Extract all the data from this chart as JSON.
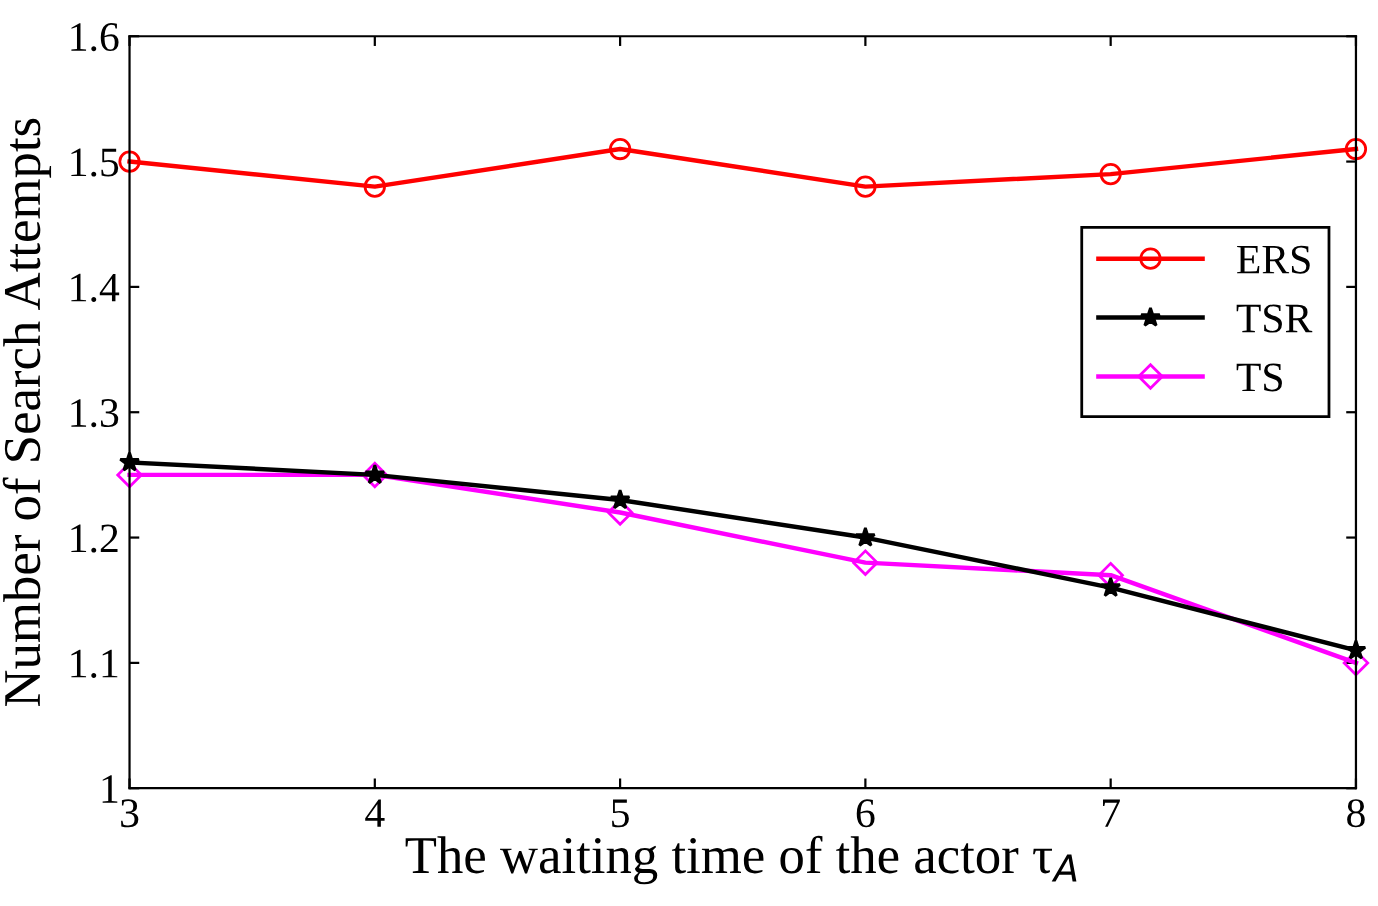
{
  "chart_data": {
    "type": "line",
    "xlabel": "The waiting time of the actor τ$_{A}$",
    "ylabel": "Number of Search Attempts",
    "x": [
      3,
      4,
      5,
      6,
      7,
      8
    ],
    "series": [
      {
        "name": "ERS",
        "color": "#ff0000",
        "marker": "circle",
        "values": [
          1.5,
          1.48,
          1.51,
          1.48,
          1.49,
          1.51
        ]
      },
      {
        "name": "TSR",
        "color": "#000000",
        "marker": "star",
        "values": [
          1.26,
          1.25,
          1.23,
          1.2,
          1.16,
          1.11
        ]
      },
      {
        "name": "TS",
        "color": "#ff00ff",
        "marker": "diamond",
        "values": [
          1.25,
          1.25,
          1.22,
          1.18,
          1.17,
          1.1
        ]
      }
    ],
    "xlim": [
      3,
      8
    ],
    "ylim": [
      1,
      1.6
    ],
    "xticks": [
      3,
      4,
      5,
      6,
      7,
      8
    ],
    "yticks": [
      1,
      1.1,
      1.2,
      1.3,
      1.4,
      1.5,
      1.6
    ],
    "grid": false,
    "legend": "right",
    "line_style": "solid"
  }
}
